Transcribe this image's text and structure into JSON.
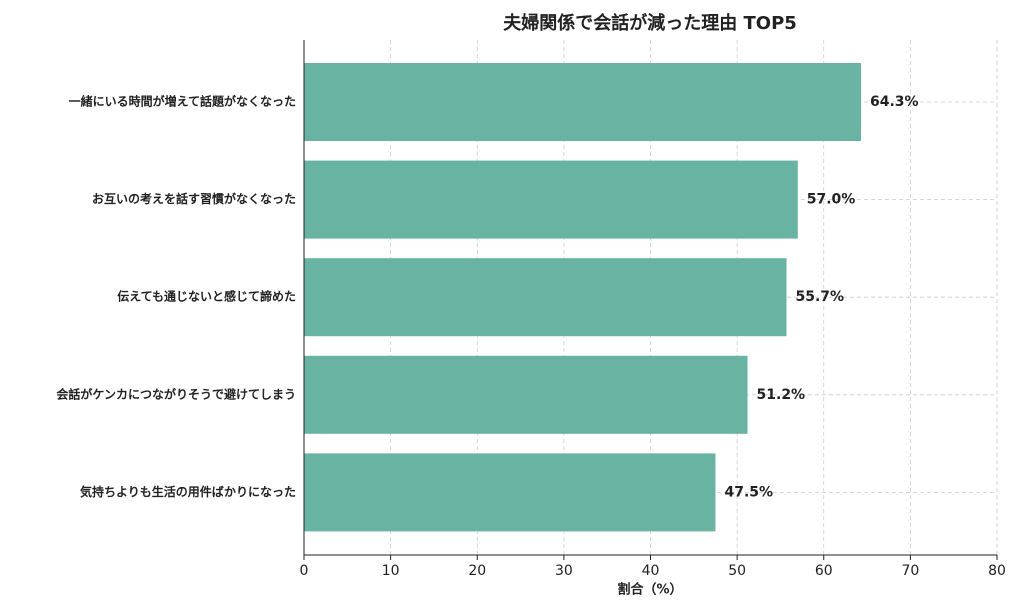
{
  "chart_data": {
    "type": "barh",
    "title": "夫婦関係で会話が減った理由 TOP5",
    "xlabel": "割合（%）",
    "categories": [
      "一緒にいる時間が増えて話題がなくなった",
      "お互いの考えを話す習慣がなくなった",
      "伝えても通じないと感じて諦めた",
      "会話がケンカにつながりそうで避けてしまう",
      "気持ちよりも生活の用件ばかりになった"
    ],
    "values": [
      64.3,
      57.0,
      55.7,
      51.2,
      47.5
    ],
    "value_labels": [
      "64.3%",
      "57.0%",
      "55.7%",
      "51.2%",
      "47.5%"
    ],
    "color": "#69b3a2",
    "xlim": [
      0,
      80
    ],
    "xticks": [
      0,
      10,
      20,
      30,
      40,
      50,
      60,
      70,
      80
    ],
    "grid": true
  }
}
